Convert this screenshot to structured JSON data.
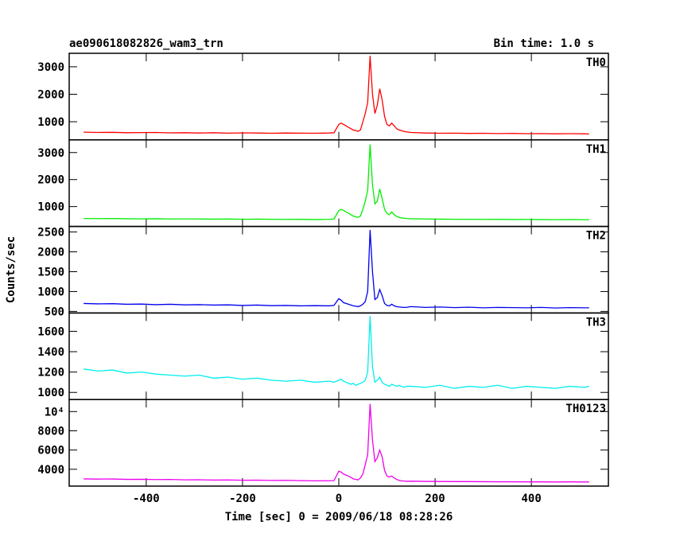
{
  "chart_data": [
    {
      "type": "line",
      "title": "ae090618082826_wam3_trn",
      "annotation": "Bin time: 1.0 s",
      "x": [
        -530,
        -500,
        -470,
        -440,
        -410,
        -380,
        -350,
        -320,
        -290,
        -260,
        -230,
        -200,
        -170,
        -140,
        -110,
        -80,
        -50,
        -20,
        -10,
        0,
        5,
        10,
        15,
        20,
        25,
        30,
        35,
        40,
        45,
        50,
        55,
        60,
        65,
        70,
        75,
        80,
        85,
        90,
        95,
        100,
        105,
        110,
        115,
        120,
        125,
        130,
        135,
        140,
        150,
        180,
        210,
        240,
        270,
        300,
        330,
        360,
        390,
        420,
        450,
        480,
        510,
        520
      ],
      "series": [
        {
          "name": "TH0",
          "color": "#ff0000",
          "values": [
            620,
            610,
            615,
            600,
            605,
            610,
            595,
            600,
            590,
            600,
            585,
            595,
            590,
            580,
            590,
            585,
            580,
            590,
            600,
            900,
            950,
            900,
            850,
            800,
            750,
            700,
            680,
            650,
            700,
            1000,
            1300,
            1700,
            3400,
            2000,
            1300,
            1600,
            2200,
            1800,
            1200,
            900,
            850,
            950,
            850,
            750,
            700,
            680,
            650,
            630,
            610,
            590,
            580,
            585,
            575,
            580,
            570,
            575,
            565,
            570,
            560,
            565,
            560,
            555
          ]
        }
      ],
      "xlim": [
        -560,
        560
      ],
      "xticks": [
        -400,
        -200,
        0,
        200,
        400
      ],
      "ylim": [
        340,
        3490
      ],
      "yticks": [
        1000,
        2000,
        3000
      ]
    },
    {
      "type": "line",
      "x": [
        -530,
        -500,
        -470,
        -440,
        -410,
        -380,
        -350,
        -320,
        -290,
        -260,
        -230,
        -200,
        -170,
        -140,
        -110,
        -80,
        -50,
        -20,
        -10,
        0,
        5,
        10,
        15,
        20,
        25,
        30,
        35,
        40,
        45,
        50,
        55,
        60,
        65,
        70,
        75,
        80,
        85,
        90,
        95,
        100,
        105,
        110,
        115,
        120,
        125,
        130,
        135,
        140,
        150,
        180,
        210,
        240,
        270,
        300,
        330,
        360,
        390,
        420,
        450,
        480,
        510,
        520
      ],
      "series": [
        {
          "name": "TH1",
          "color": "#00ee00",
          "values": [
            560,
            555,
            560,
            550,
            545,
            550,
            540,
            545,
            540,
            535,
            540,
            530,
            535,
            530,
            525,
            530,
            520,
            530,
            540,
            850,
            900,
            860,
            800,
            760,
            700,
            650,
            620,
            600,
            650,
            900,
            1200,
            1600,
            3300,
            1800,
            1100,
            1200,
            1650,
            1300,
            900,
            750,
            700,
            800,
            700,
            640,
            600,
            580,
            570,
            560,
            550,
            540,
            535,
            530,
            530,
            525,
            530,
            520,
            525,
            520,
            515,
            520,
            515,
            515
          ]
        }
      ],
      "xlim": [
        -560,
        560
      ],
      "xticks": [
        -400,
        -200,
        0,
        200,
        400
      ],
      "ylim": [
        265,
        3470
      ],
      "yticks": [
        1000,
        2000,
        3000
      ]
    },
    {
      "type": "line",
      "ylabel": "Counts/sec",
      "x": [
        -530,
        -500,
        -470,
        -440,
        -410,
        -380,
        -350,
        -320,
        -290,
        -260,
        -230,
        -200,
        -170,
        -140,
        -110,
        -80,
        -50,
        -20,
        -10,
        0,
        5,
        10,
        15,
        20,
        25,
        30,
        35,
        40,
        45,
        50,
        55,
        60,
        65,
        70,
        75,
        80,
        85,
        90,
        95,
        100,
        105,
        110,
        115,
        120,
        125,
        130,
        135,
        140,
        150,
        180,
        210,
        240,
        270,
        300,
        330,
        360,
        390,
        420,
        450,
        480,
        510,
        520
      ],
      "series": [
        {
          "name": "TH2",
          "color": "#0000ee",
          "values": [
            700,
            690,
            695,
            680,
            685,
            670,
            680,
            665,
            670,
            660,
            665,
            650,
            660,
            645,
            650,
            640,
            645,
            640,
            650,
            820,
            780,
            720,
            700,
            680,
            660,
            640,
            630,
            620,
            640,
            680,
            750,
            1000,
            2550,
            1500,
            800,
            850,
            1050,
            900,
            700,
            650,
            640,
            680,
            640,
            620,
            610,
            605,
            600,
            600,
            620,
            600,
            610,
            595,
            605,
            590,
            600,
            595,
            590,
            600,
            585,
            595,
            590,
            590
          ]
        }
      ],
      "xlim": [
        -560,
        560
      ],
      "xticks": [
        -400,
        -200,
        0,
        200,
        400
      ],
      "ylim": [
        460,
        2640
      ],
      "yticks": [
        500,
        1000,
        1500,
        2000,
        2500
      ]
    },
    {
      "type": "line",
      "x": [
        -530,
        -500,
        -470,
        -440,
        -410,
        -380,
        -350,
        -320,
        -290,
        -260,
        -230,
        -200,
        -170,
        -140,
        -110,
        -80,
        -50,
        -20,
        -10,
        0,
        5,
        10,
        15,
        20,
        25,
        30,
        35,
        40,
        45,
        50,
        55,
        60,
        65,
        70,
        75,
        80,
        85,
        90,
        95,
        100,
        105,
        110,
        115,
        120,
        125,
        130,
        135,
        140,
        150,
        180,
        210,
        240,
        270,
        300,
        330,
        360,
        390,
        420,
        450,
        480,
        510,
        520
      ],
      "series": [
        {
          "name": "TH3",
          "color": "#00eeee",
          "values": [
            1230,
            1210,
            1220,
            1190,
            1200,
            1180,
            1170,
            1160,
            1170,
            1140,
            1150,
            1130,
            1140,
            1120,
            1110,
            1120,
            1100,
            1110,
            1100,
            1120,
            1130,
            1110,
            1100,
            1090,
            1080,
            1090,
            1070,
            1080,
            1090,
            1100,
            1120,
            1200,
            1750,
            1250,
            1100,
            1120,
            1150,
            1100,
            1080,
            1070,
            1060,
            1080,
            1070,
            1060,
            1070,
            1060,
            1050,
            1060,
            1060,
            1050,
            1070,
            1040,
            1060,
            1050,
            1070,
            1040,
            1060,
            1050,
            1040,
            1060,
            1050,
            1060
          ]
        }
      ],
      "xlim": [
        -560,
        560
      ],
      "xticks": [
        -400,
        -200,
        0,
        200,
        400
      ],
      "ylim": [
        930,
        1780
      ],
      "yticks": [
        1000,
        1200,
        1400,
        1600
      ]
    },
    {
      "type": "line",
      "xlabel": "Time [sec] 0 = 2009/06/18 08:28:26",
      "x": [
        -530,
        -500,
        -470,
        -440,
        -410,
        -380,
        -350,
        -320,
        -290,
        -260,
        -230,
        -200,
        -170,
        -140,
        -110,
        -80,
        -50,
        -20,
        -10,
        0,
        5,
        10,
        15,
        20,
        25,
        30,
        35,
        40,
        45,
        50,
        55,
        60,
        65,
        70,
        75,
        80,
        85,
        90,
        95,
        100,
        105,
        110,
        115,
        120,
        125,
        130,
        135,
        140,
        150,
        180,
        210,
        240,
        270,
        300,
        330,
        360,
        390,
        420,
        450,
        480,
        510,
        520
      ],
      "series": [
        {
          "name": "TH0123",
          "color": "#ee00ee",
          "values": [
            3000,
            2980,
            2990,
            2950,
            2960,
            2930,
            2940,
            2900,
            2910,
            2880,
            2890,
            2860,
            2870,
            2840,
            2850,
            2820,
            2800,
            2810,
            2820,
            3800,
            3700,
            3500,
            3400,
            3300,
            3150,
            3000,
            2950,
            2900,
            3100,
            3500,
            4500,
            5500,
            10800,
            7000,
            4800,
            5200,
            6000,
            5300,
            3900,
            3300,
            3200,
            3300,
            3100,
            2950,
            2850,
            2800,
            2780,
            2750,
            2760,
            2740,
            2730,
            2720,
            2720,
            2710,
            2700,
            2700,
            2690,
            2690,
            2680,
            2690,
            2680,
            2680
          ]
        }
      ],
      "xlim": [
        -560,
        560
      ],
      "xticks": [
        -400,
        -200,
        0,
        200,
        400
      ],
      "ylim": [
        2250,
        11250
      ],
      "yticks": [
        4000,
        6000,
        8000,
        {
          "value": 10000,
          "label": "10⁴"
        }
      ]
    }
  ]
}
